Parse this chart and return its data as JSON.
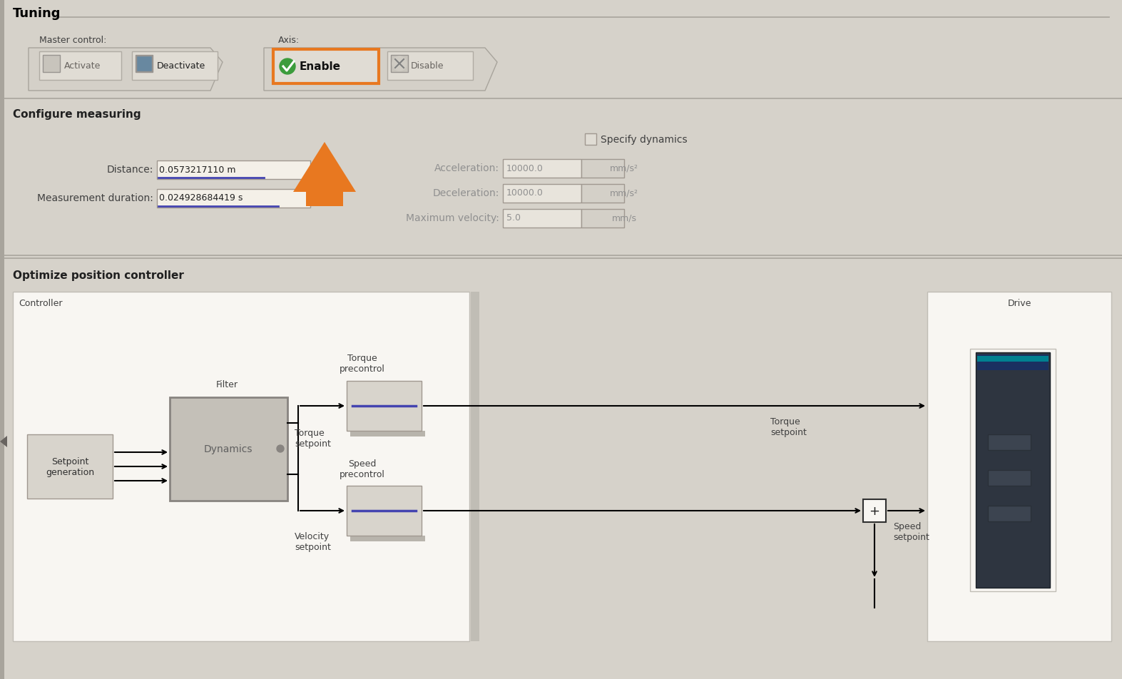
{
  "bg_color": "#d6d2ca",
  "top_bar_color": "#e8e4dc",
  "toolbar_color": "#dedad2",
  "section_bg": "#ccc8c0",
  "white_panel": "#f8f6f2",
  "orange": "#e87820",
  "green": "#3c9c3c",
  "title_text": "Tuning",
  "master_control_label": "Master control:",
  "axis_label": "Axis:",
  "btn_activate": "Activate",
  "btn_deactivate": "Deactivate",
  "btn_enable": "Enable",
  "btn_disable": "Disable",
  "section1_title": "Configure measuring",
  "specify_dynamics": "Specify dynamics",
  "distance_label": "Distance:",
  "distance_value": "0.0573217110 m",
  "meas_dur_label": "Measurement duration:",
  "meas_dur_value": "0.024928684419 s",
  "accel_label": "Acceleration:",
  "accel_value": "10000.0",
  "accel_unit": "mm/s²",
  "decel_label": "Deceleration:",
  "decel_value": "10000.0",
  "decel_unit": "mm/s²",
  "maxvel_label": "Maximum velocity:",
  "maxvel_value": "5.0",
  "maxvel_unit": "mm/s",
  "section2_title": "Optimize position controller",
  "controller_label": "Controller",
  "filter_label": "Filter",
  "dynamics_label": "Dynamics",
  "torque_precontrol": "Torque\nprecontrol",
  "speed_precontrol": "Speed\nprecontrol",
  "torque_setpoint_label": "Torque\nsetpoint",
  "velocity_setpoint_label": "Velocity\nsetpoint",
  "speed_setpoint_label": "Speed\nsetpoint",
  "drive_label": "Drive",
  "setpoint_generation": "Setpoint\ngeneration"
}
